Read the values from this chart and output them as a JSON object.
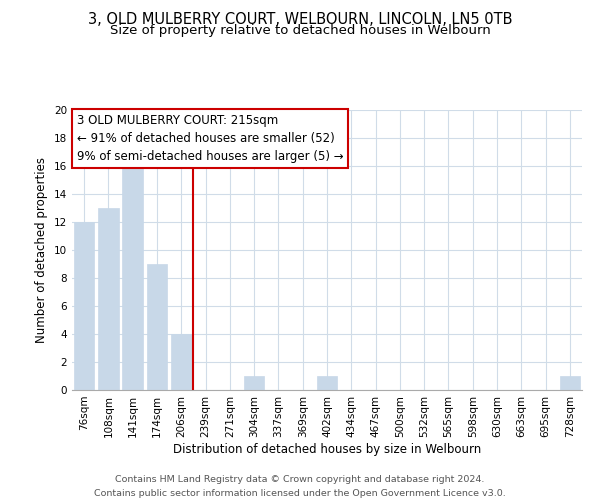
{
  "title": "3, OLD MULBERRY COURT, WELBOURN, LINCOLN, LN5 0TB",
  "subtitle": "Size of property relative to detached houses in Welbourn",
  "xlabel": "Distribution of detached houses by size in Welbourn",
  "ylabel": "Number of detached properties",
  "bar_labels": [
    "76sqm",
    "108sqm",
    "141sqm",
    "174sqm",
    "206sqm",
    "239sqm",
    "271sqm",
    "304sqm",
    "337sqm",
    "369sqm",
    "402sqm",
    "434sqm",
    "467sqm",
    "500sqm",
    "532sqm",
    "565sqm",
    "598sqm",
    "630sqm",
    "663sqm",
    "695sqm",
    "728sqm"
  ],
  "bar_values": [
    12,
    13,
    16,
    9,
    4,
    0,
    0,
    1,
    0,
    0,
    1,
    0,
    0,
    0,
    0,
    0,
    0,
    0,
    0,
    0,
    1
  ],
  "bar_color": "#c8d8e8",
  "bar_edge_color": "#c8d8e8",
  "vline_x": 4.5,
  "vline_color": "#cc0000",
  "ylim": [
    0,
    20
  ],
  "yticks": [
    0,
    2,
    4,
    6,
    8,
    10,
    12,
    14,
    16,
    18,
    20
  ],
  "annotation_title": "3 OLD MULBERRY COURT: 215sqm",
  "annotation_line1": "← 91% of detached houses are smaller (52)",
  "annotation_line2": "9% of semi-detached houses are larger (5) →",
  "annotation_box_color": "#ffffff",
  "annotation_box_edge_color": "#cc0000",
  "footer_line1": "Contains HM Land Registry data © Crown copyright and database right 2024.",
  "footer_line2": "Contains public sector information licensed under the Open Government Licence v3.0.",
  "background_color": "#ffffff",
  "grid_color": "#d0dce8",
  "title_fontsize": 10.5,
  "subtitle_fontsize": 9.5,
  "annotation_fontsize": 8.5,
  "axis_fontsize": 8.5,
  "tick_fontsize": 7.5,
  "footer_fontsize": 6.8
}
